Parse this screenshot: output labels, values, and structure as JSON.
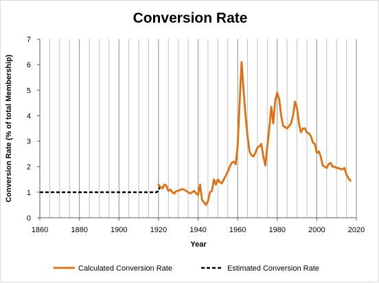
{
  "chart_data": {
    "type": "line",
    "title": "Conversion Rate",
    "xlabel": "Year",
    "ylabel": "Conversion Rate (% of total Membership)",
    "xlim": [
      1860,
      2020
    ],
    "ylim": [
      0,
      7
    ],
    "xticks": [
      "1860",
      "1880",
      "1900",
      "1920",
      "1940",
      "1960",
      "1980",
      "2000",
      "2020"
    ],
    "yticks": [
      "0",
      "1",
      "2",
      "3",
      "4",
      "5",
      "6",
      "7"
    ],
    "grid": {
      "vertical_major": true,
      "vertical_minor_step": 5,
      "horizontal": false
    },
    "legend_position": "bottom",
    "series": [
      {
        "name": "Calculated Conversion Rate",
        "color": "#e46c0a",
        "style": "solid",
        "x": [
          1920,
          1921,
          1922,
          1923,
          1924,
          1925,
          1926,
          1927,
          1928,
          1929,
          1930,
          1931,
          1932,
          1933,
          1934,
          1935,
          1936,
          1937,
          1938,
          1939,
          1940,
          1941,
          1942,
          1943,
          1944,
          1945,
          1946,
          1947,
          1948,
          1949,
          1950,
          1951,
          1952,
          1953,
          1954,
          1955,
          1956,
          1957,
          1958,
          1959,
          1960,
          1961,
          1962,
          1963,
          1964,
          1965,
          1966,
          1967,
          1968,
          1969,
          1970,
          1971,
          1972,
          1973,
          1974,
          1975,
          1976,
          1977,
          1978,
          1979,
          1980,
          1981,
          1982,
          1983,
          1984,
          1985,
          1986,
          1987,
          1988,
          1989,
          1990,
          1991,
          1992,
          1993,
          1994,
          1995,
          1996,
          1997,
          1998,
          1999,
          2000,
          2001,
          2002,
          2003,
          2004,
          2005,
          2006,
          2007,
          2008,
          2009,
          2010,
          2011,
          2012,
          2013,
          2014,
          2015,
          2016,
          2017
        ],
        "y": [
          1.3,
          1.2,
          1.15,
          1.3,
          1.25,
          1.05,
          1.1,
          1.0,
          0.95,
          1.05,
          1.05,
          1.1,
          1.12,
          1.1,
          1.05,
          1.0,
          0.95,
          1.0,
          1.05,
          0.95,
          0.9,
          1.3,
          0.7,
          0.6,
          0.5,
          0.65,
          1.0,
          1.05,
          1.5,
          1.3,
          1.5,
          1.4,
          1.35,
          1.5,
          1.65,
          1.8,
          2.0,
          2.15,
          2.2,
          2.1,
          2.8,
          4.5,
          6.1,
          5.0,
          4.0,
          3.2,
          2.6,
          2.45,
          2.4,
          2.55,
          2.75,
          2.8,
          2.9,
          2.4,
          2.05,
          2.8,
          3.5,
          4.35,
          3.7,
          4.6,
          4.9,
          4.65,
          4.0,
          3.6,
          3.55,
          3.5,
          3.6,
          3.7,
          4.0,
          4.55,
          4.3,
          3.7,
          3.35,
          3.5,
          3.5,
          3.35,
          3.3,
          3.2,
          2.95,
          2.9,
          2.55,
          2.6,
          2.4,
          2.05,
          2.0,
          1.95,
          2.1,
          2.15,
          2.0,
          2.0,
          1.95,
          1.95,
          1.9,
          1.9,
          1.95,
          1.7,
          1.55,
          1.45
        ]
      },
      {
        "name": "Estimated Conversion Rate",
        "color": "#000000",
        "style": "dashed",
        "x": [
          1860,
          1870,
          1880,
          1890,
          1900,
          1910,
          1919,
          1920,
          1921
        ],
        "y": [
          1.0,
          1.0,
          1.0,
          1.0,
          1.0,
          1.0,
          1.0,
          1.05,
          1.3
        ]
      }
    ]
  }
}
